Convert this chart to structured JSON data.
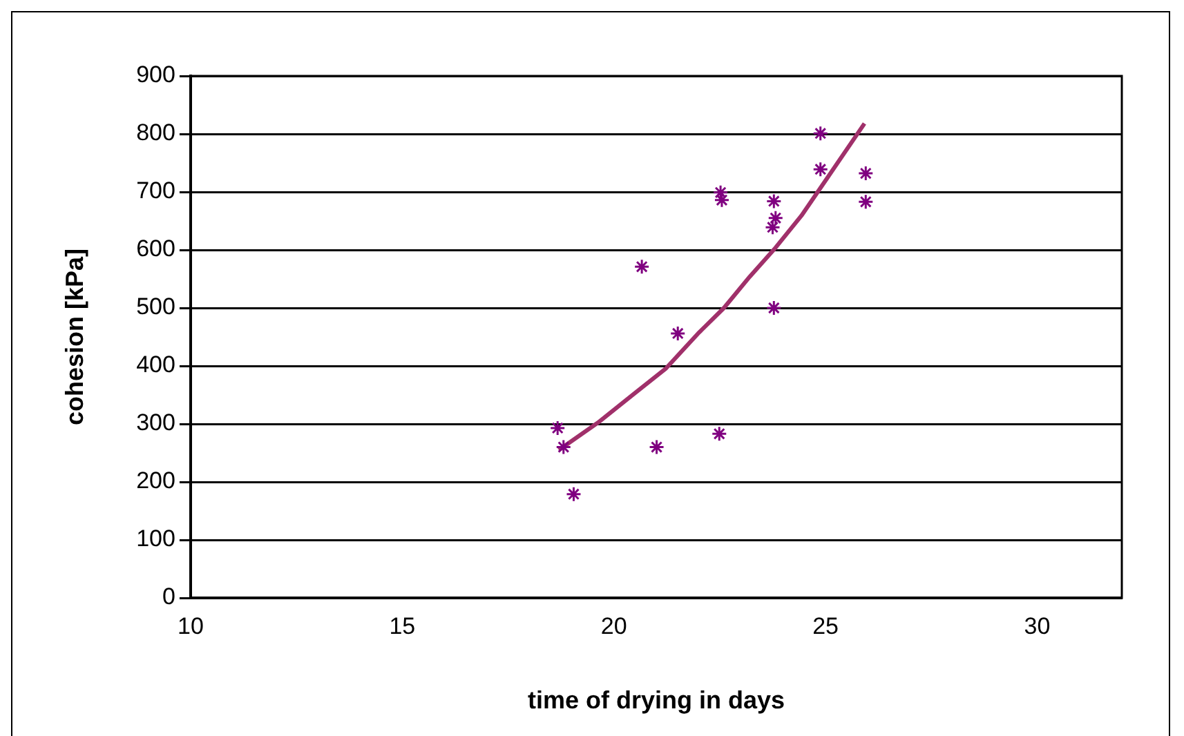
{
  "chart_data": {
    "type": "scatter",
    "xlabel": "time of drying in days",
    "ylabel": "cohesion [kPa]",
    "xlim": [
      10,
      32
    ],
    "xticks": [
      10,
      15,
      20,
      25,
      30
    ],
    "ylim": [
      0,
      900
    ],
    "yticks": [
      0,
      100,
      200,
      300,
      400,
      500,
      600,
      700,
      800,
      900
    ],
    "grid": "y",
    "legend": false,
    "marker": "cross",
    "series": [
      {
        "type": "scatter",
        "color": "#800080",
        "x": [
          18.67,
          18.81,
          19.05,
          20.66,
          21.01,
          21.51,
          22.49,
          22.52,
          22.55,
          23.78,
          23.82,
          23.75,
          23.78,
          24.88,
          24.88,
          25.95,
          25.95
        ],
        "values": [
          293,
          260,
          179,
          571,
          260,
          456,
          283,
          699,
          686,
          684,
          655,
          639,
          500,
          801,
          739,
          732,
          683
        ]
      },
      {
        "type": "line",
        "color": "#a0306a",
        "marker": "none",
        "line_style": "solid",
        "x": [
          18.7,
          19.62,
          20.46,
          21.22,
          21.99,
          22.6,
          23.21,
          23.82,
          24.43,
          25.05,
          25.92
        ],
        "values": [
          255,
          302,
          351,
          395,
          456,
          500,
          554,
          604,
          659,
          725,
          818
        ]
      }
    ]
  }
}
